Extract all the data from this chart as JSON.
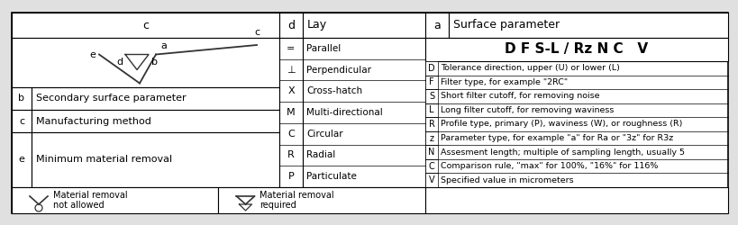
{
  "bg_color": "#e0e0e0",
  "lay_symbols": [
    "=",
    "⊥",
    "X",
    "M",
    "C",
    "R",
    "P"
  ],
  "lay_labels": [
    "Parallel",
    "Perpendicular",
    "Cross-hatch",
    "Multi-directional",
    "Circular",
    "Radial",
    "Particulate"
  ],
  "param_letters": [
    "D",
    "F",
    "S",
    "L",
    "R",
    "z",
    "N",
    "C",
    "V"
  ],
  "param_descriptions": [
    "Tolerance direction, upper (U) or lower (L)",
    "Filter type, for example \"2RC\"",
    "Short filter cutoff, for removing noise",
    "Long filter cutoff, for removing waviness",
    "Profile type, primary (P), waviness (W), or roughness (R)",
    "Parameter type, for example \"a\" for Ra or \"3z\" for R3z",
    "Assesment length; multiple of sampling length, usually 5",
    "Comparison rule, \"max\" for 100%, \"16%\" for 116%",
    "Specified value in micrometers"
  ],
  "param_header": "D F S-L / Rz N C   V",
  "bottom_left1_text": "Material removal\nnot allowed",
  "bottom_left2_text": "Material removal\nrequired"
}
